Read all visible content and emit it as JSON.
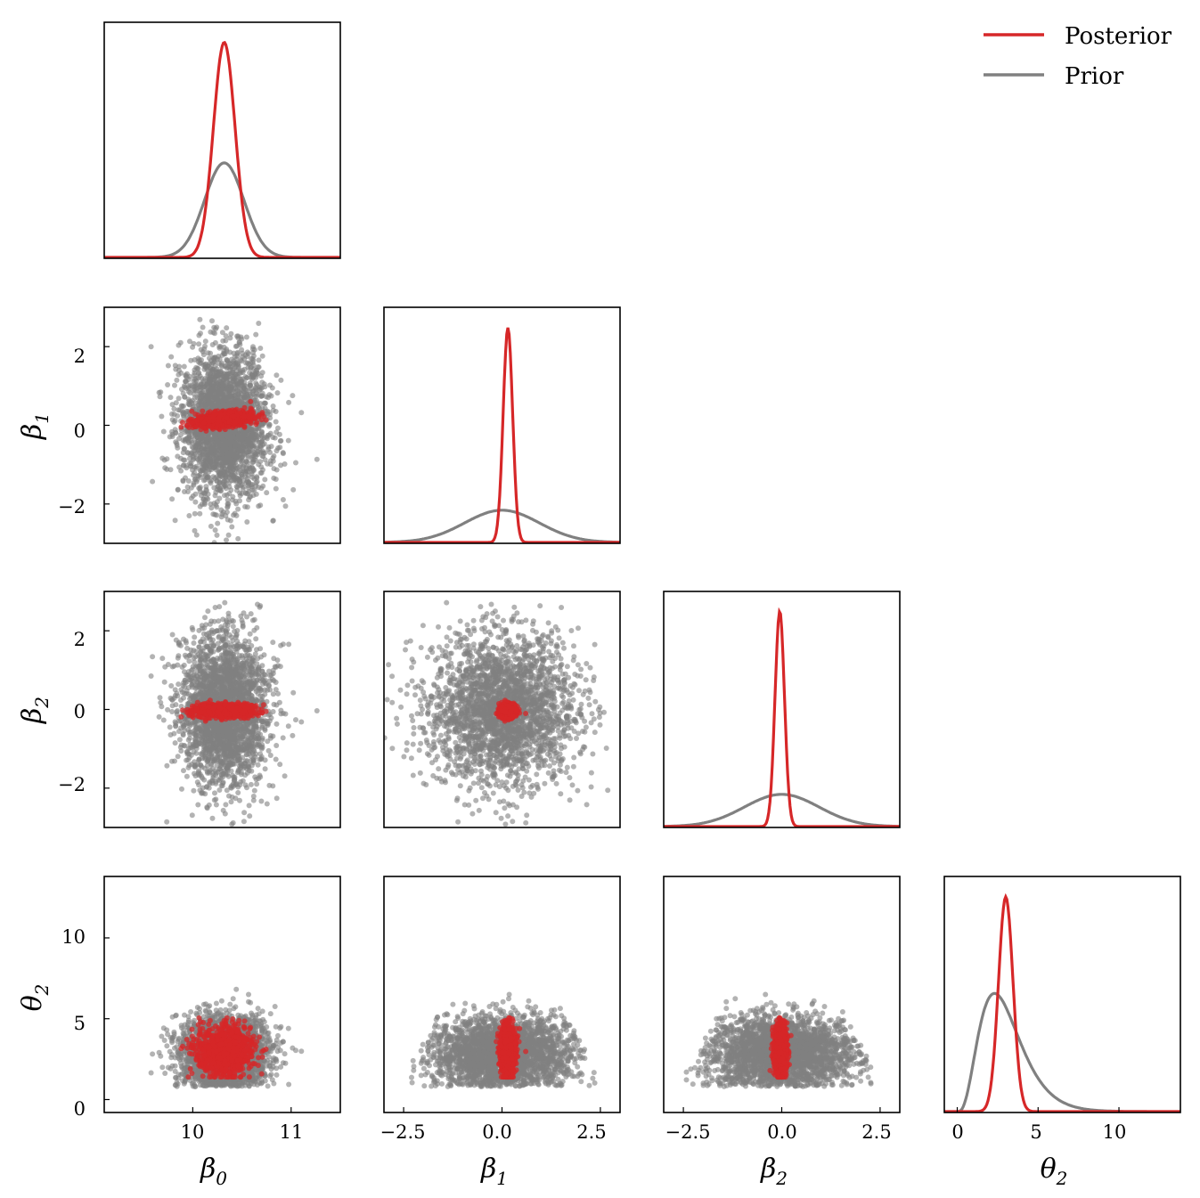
{
  "chart_data": {
    "type": "scatter",
    "title": "",
    "layout": "corner-plot",
    "parameters": [
      {
        "symbol": "β",
        "subscript": "0",
        "range": [
          9.1,
          11.5
        ],
        "ticks": [
          10,
          11
        ]
      },
      {
        "symbol": "β",
        "subscript": "1",
        "range": [
          -3.0,
          3.0
        ],
        "ticks": [
          -2.5,
          0.0,
          2.5
        ],
        "ylabel_ticks": [
          -2,
          0,
          2
        ]
      },
      {
        "symbol": "β",
        "subscript": "2",
        "range": [
          -3.0,
          3.0
        ],
        "ticks": [
          -2.5,
          0.0,
          2.5
        ],
        "ylabel_ticks": [
          -2,
          0,
          2
        ]
      },
      {
        "symbol": "θ",
        "subscript": "2",
        "range": [
          -0.8,
          13.8
        ],
        "ticks": [
          0,
          5,
          10
        ],
        "ylabel_ticks": [
          0,
          5,
          10
        ]
      }
    ],
    "tick_labels": {
      "beta0": [
        "10",
        "11"
      ],
      "beta1_x": [
        "−2.5",
        "0.0",
        "2.5"
      ],
      "beta2_x": [
        "−2.5",
        "0.0",
        "2.5"
      ],
      "theta2_x": [
        "0",
        "5",
        "10"
      ],
      "beta_y": [
        "2",
        "0",
        "−2"
      ],
      "theta2_y": [
        "10",
        "5",
        "0"
      ]
    },
    "legend": {
      "placement": "top-right",
      "entries": [
        "Posterior",
        "Prior"
      ]
    },
    "series": [
      {
        "name": "Posterior",
        "color": "#d62728"
      },
      {
        "name": "Prior",
        "color": "#808080"
      }
    ],
    "marginals": [
      {
        "param": 0,
        "prior": {
          "mean": 10.32,
          "sd": 0.2
        },
        "posterior": {
          "mean": 10.32,
          "sd": 0.11
        }
      },
      {
        "param": 1,
        "prior": {
          "mean": 0.0,
          "sd": 0.95
        },
        "posterior": {
          "mean": 0.15,
          "sd": 0.12
        }
      },
      {
        "param": 2,
        "prior": {
          "mean": 0.0,
          "sd": 0.95
        },
        "posterior": {
          "mean": -0.05,
          "sd": 0.12
        }
      },
      {
        "param": 3,
        "prior": {
          "mode": 2.7,
          "shape": "right-skewed"
        },
        "posterior": {
          "mean": 3.0,
          "sd": 0.45
        }
      }
    ],
    "grid": false
  },
  "colors": {
    "posterior": "#d62728",
    "prior": "#808080",
    "frame": "#000000"
  }
}
